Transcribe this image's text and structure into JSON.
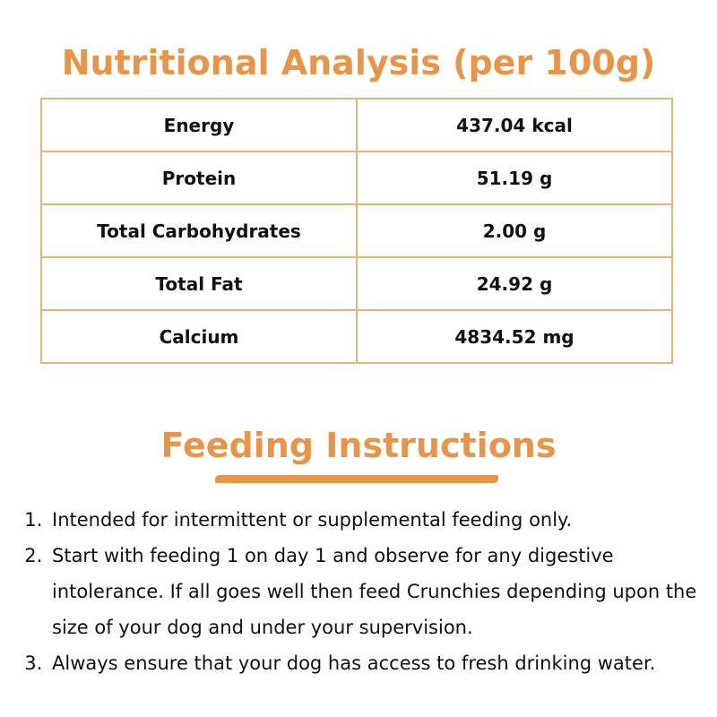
{
  "title": "Nutritional Analysis (per 100g)",
  "rows": [
    {
      "label": "Energy",
      "value": "437.04 kcal"
    },
    {
      "label": "Protein",
      "value": "51.19 g"
    },
    {
      "label": "Total Carbohydrates",
      "value": "2.00 g"
    },
    {
      "label": "Total Fat",
      "value": "24.92 g"
    },
    {
      "label": "Calcium",
      "value": "4834.52 mg"
    }
  ],
  "feeding_title": "Feeding Instructions",
  "instructions": [
    "Intended for intermittent or supplemental feeding only.",
    "Start with feeding 1 on day 1 and observe for any digestive intolerance. If all goes well then feed Crunchies depending upon the size of your dog and under your supervision.",
    "Always ensure that your dog has access to fresh drinking water."
  ],
  "accent": "#e8954a"
}
